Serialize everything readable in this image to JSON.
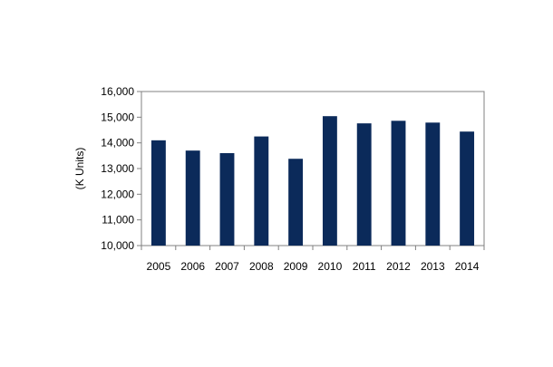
{
  "chart_data": {
    "type": "bar",
    "title": "",
    "xlabel": "",
    "ylabel": "(K Units)",
    "categories": [
      "2005",
      "2006",
      "2007",
      "2008",
      "2009",
      "2010",
      "2011",
      "2012",
      "2013",
      "2014"
    ],
    "values": [
      14100,
      13700,
      13600,
      14250,
      13380,
      15040,
      14760,
      14860,
      14790,
      14440
    ],
    "ylim": [
      10000,
      16000
    ],
    "yticks": [
      10000,
      11000,
      12000,
      13000,
      14000,
      15000,
      16000
    ],
    "ytick_labels": [
      "10,000",
      "11,000",
      "12,000",
      "13,000",
      "14,000",
      "15,000",
      "16,000"
    ],
    "grid": false,
    "legend": "none",
    "colors": {
      "bar": "#0b2a5a",
      "axis": "#808080"
    }
  }
}
